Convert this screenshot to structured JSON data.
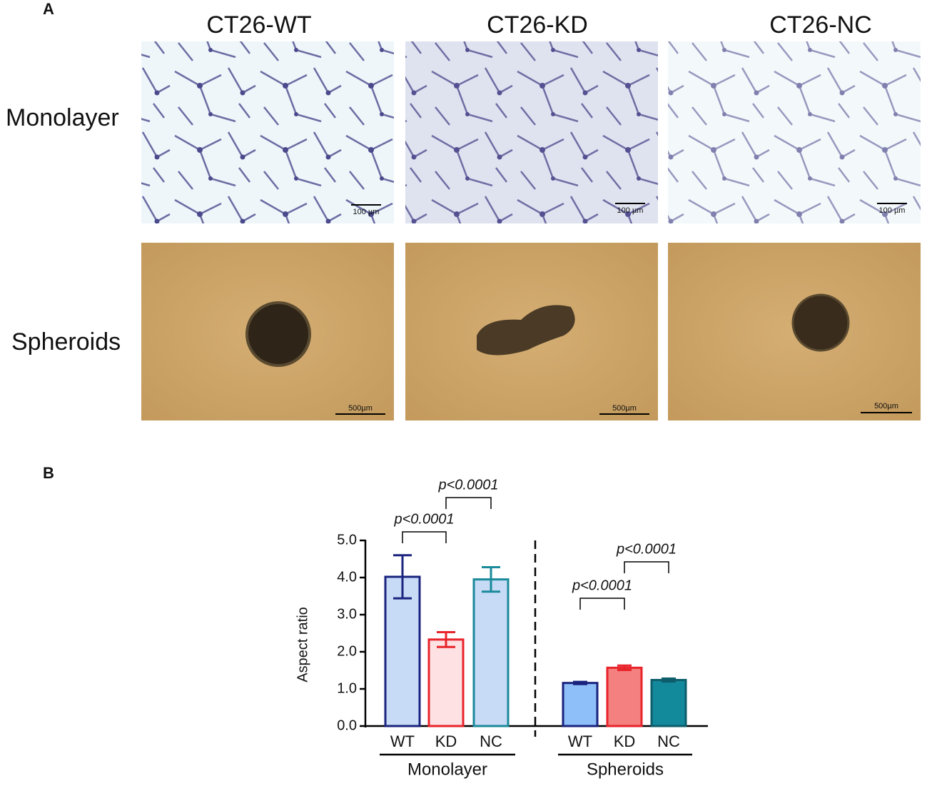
{
  "panel_a": {
    "label": "A",
    "columns": [
      "CT26-WT",
      "CT26-KD",
      "CT26-NC"
    ],
    "rows": [
      "Monolayer",
      "Spheroids"
    ],
    "scale_bars": [
      [
        "100 µm",
        "100 µm",
        "100 µm"
      ],
      [
        "500µm",
        "500µm",
        "500µm"
      ]
    ]
  },
  "chart_data": {
    "type": "bar",
    "label": "B",
    "ylabel": "Aspect ratio",
    "ylim": [
      0,
      5
    ],
    "yticks": [
      {
        "value": 0,
        "label": "0.0"
      },
      {
        "value": 1,
        "label": "1.0"
      },
      {
        "value": 2,
        "label": "2.0"
      },
      {
        "value": 3,
        "label": "3.0"
      },
      {
        "value": 4,
        "label": "4.0"
      },
      {
        "value": 5,
        "label": "5.0"
      }
    ],
    "groups": [
      {
        "name": "Monolayer",
        "categories": [
          "WT",
          "KD",
          "NC"
        ],
        "values": [
          4.02,
          2.33,
          3.95
        ],
        "errors": [
          0.58,
          0.2,
          0.33
        ],
        "fills": [
          "#c8dbf6",
          "#fde1e3",
          "#c8dbf6"
        ],
        "colors": [
          "#1a237e",
          "#e8232a",
          "#1a8a9a"
        ]
      },
      {
        "name": "Spheroids",
        "categories": [
          "WT",
          "KD",
          "NC"
        ],
        "values": [
          1.16,
          1.57,
          1.24
        ],
        "errors": [
          0.03,
          0.06,
          0.04
        ],
        "fills": [
          "#8fbff8",
          "#f58080",
          "#13899c"
        ],
        "colors": [
          "#1a237e",
          "#e8232a",
          "#0e5d6b"
        ]
      }
    ],
    "comparisons": [
      {
        "group": 0,
        "from": 0,
        "to": 1,
        "label": "p<0.0001"
      },
      {
        "group": 0,
        "from": 1,
        "to": 2,
        "label": "p<0.0001"
      },
      {
        "group": 1,
        "from": 0,
        "to": 1,
        "label": "p<0.0001"
      },
      {
        "group": 1,
        "from": 1,
        "to": 2,
        "label": "p<0.0001"
      }
    ]
  }
}
